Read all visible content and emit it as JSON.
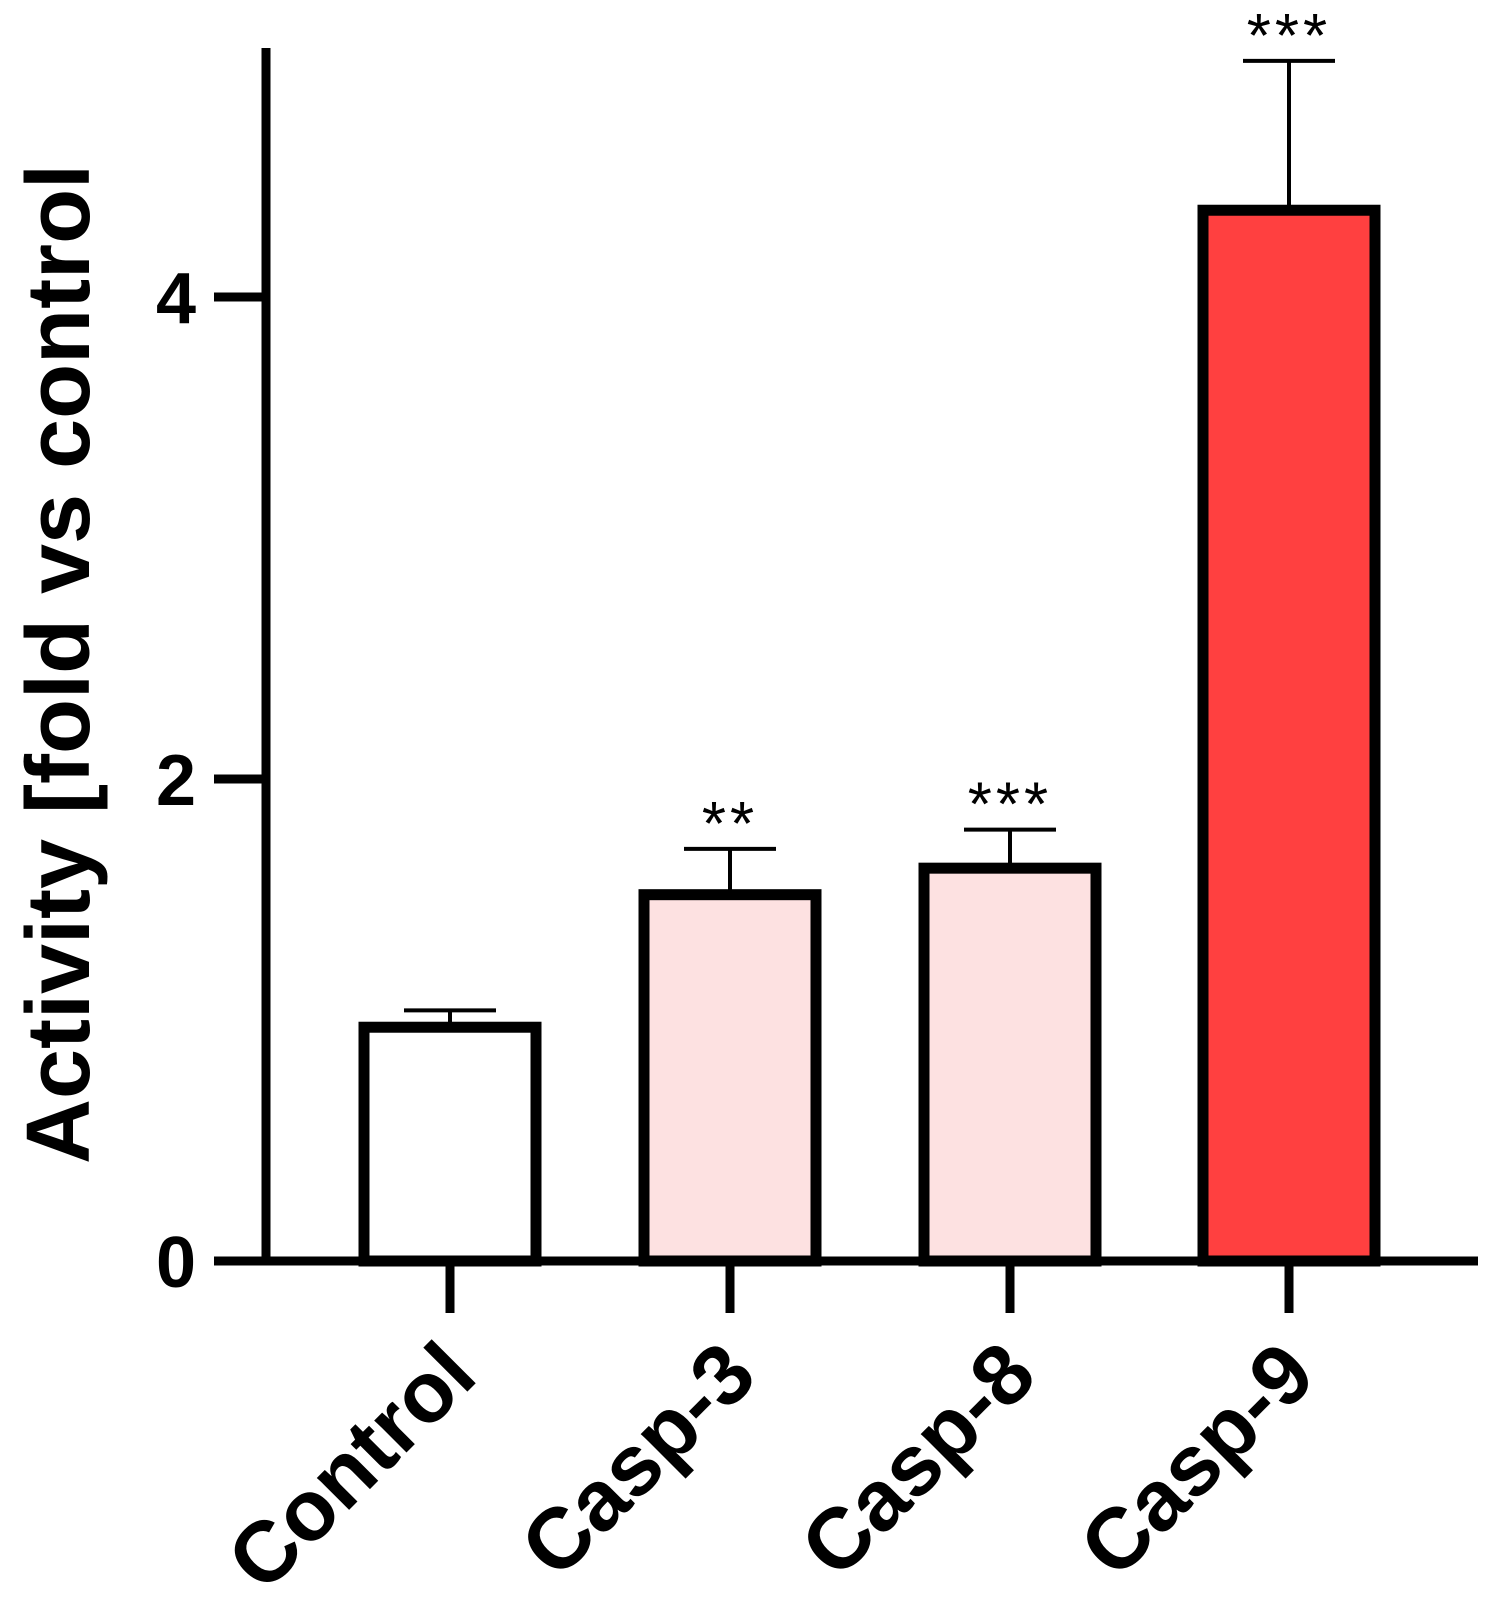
{
  "chart_data": {
    "type": "bar",
    "categories": [
      "Control",
      "Casp-3",
      "Casp-8",
      "Casp-9"
    ],
    "values": [
      0.97,
      1.52,
      1.63,
      4.36
    ],
    "errors": [
      0.07,
      0.19,
      0.16,
      0.62
    ],
    "significance": [
      "",
      "**",
      "***",
      "***"
    ],
    "colors": [
      "#ffffff",
      "#fde1e1",
      "#fde1e1",
      "#ff4040"
    ],
    "title": "",
    "xlabel": "",
    "ylabel": "Activity [fold vs control",
    "ylim": [
      0,
      5
    ],
    "yticks": [
      0,
      2,
      4
    ],
    "ytick_labels": [
      "0",
      "2",
      "4"
    ],
    "grid": false
  }
}
